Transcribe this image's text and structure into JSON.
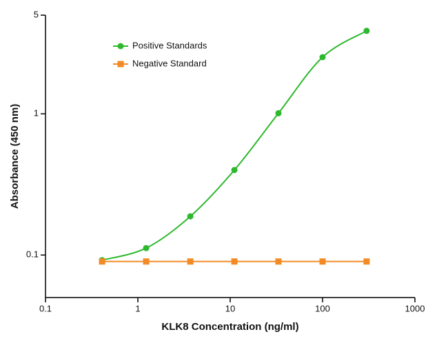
{
  "chart_data": {
    "type": "scatter",
    "xlabel": "KLK8 Concentration (ng/ml)",
    "ylabel": "Absorbance (450 nm)",
    "xscale": "log",
    "yscale": "log",
    "xlim": [
      0.1,
      1000
    ],
    "ylim": [
      0.05,
      5
    ],
    "xticks": [
      0.1,
      1,
      10,
      100,
      1000
    ],
    "yticks": [
      0.1,
      1,
      5
    ],
    "legend": "upper-left",
    "series": [
      {
        "name": "Positive Standards",
        "color": "#2db82d",
        "marker": "circle",
        "x": [
          0.41,
          1.23,
          3.7,
          11.1,
          33.3,
          100,
          300
        ],
        "values": [
          0.092,
          0.112,
          0.188,
          0.4,
          1.01,
          2.52,
          3.87
        ]
      },
      {
        "name": "Negative Standard",
        "color": "#f28a25",
        "marker": "square",
        "x": [
          0.41,
          1.23,
          3.7,
          11.1,
          33.3,
          100,
          300
        ],
        "values": [
          0.09,
          0.09,
          0.09,
          0.09,
          0.09,
          0.09,
          0.09
        ]
      }
    ]
  }
}
